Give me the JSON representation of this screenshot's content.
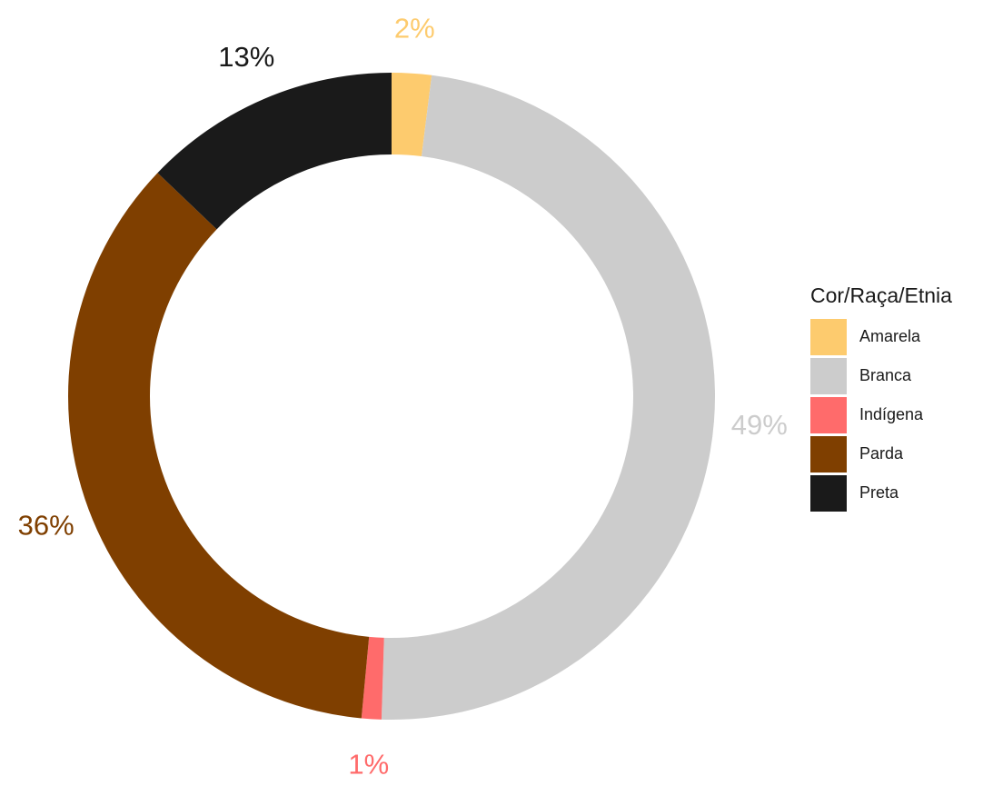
{
  "chart_data": {
    "type": "pie",
    "subtype": "donut",
    "legend_title": "Cor/Raça/Etnia",
    "legend_position": "right",
    "slices": [
      {
        "label": "Amarela",
        "value": 2,
        "display": "2%",
        "color": "#FDCB6E"
      },
      {
        "label": "Branca",
        "value": 49,
        "display": "49%",
        "color": "#CCCCCC"
      },
      {
        "label": "Indígena",
        "value": 1,
        "display": "1%",
        "color": "#FF6B6B"
      },
      {
        "label": "Parda",
        "value": 36,
        "display": "36%",
        "color": "#7F3F00"
      },
      {
        "label": "Preta",
        "value": 13,
        "display": "13%",
        "color": "#1A1A1A"
      }
    ]
  }
}
